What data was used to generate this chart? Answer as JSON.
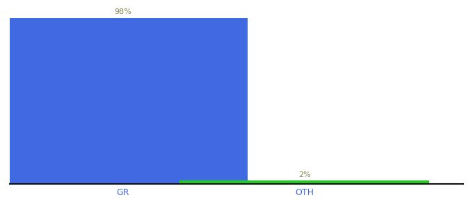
{
  "categories": [
    "GR",
    "OTH"
  ],
  "values": [
    98,
    2
  ],
  "bar_colors": [
    "#4169e1",
    "#22cc22"
  ],
  "labels": [
    "98%",
    "2%"
  ],
  "label_color": "#888855",
  "ylim": [
    0,
    105
  ],
  "background_color": "#ffffff",
  "axis_line_color": "#111111",
  "tick_label_color": "#4169e1",
  "bar_width": 0.55,
  "label_fontsize": 8,
  "tick_fontsize": 9,
  "x_positions": [
    0.25,
    0.65
  ]
}
